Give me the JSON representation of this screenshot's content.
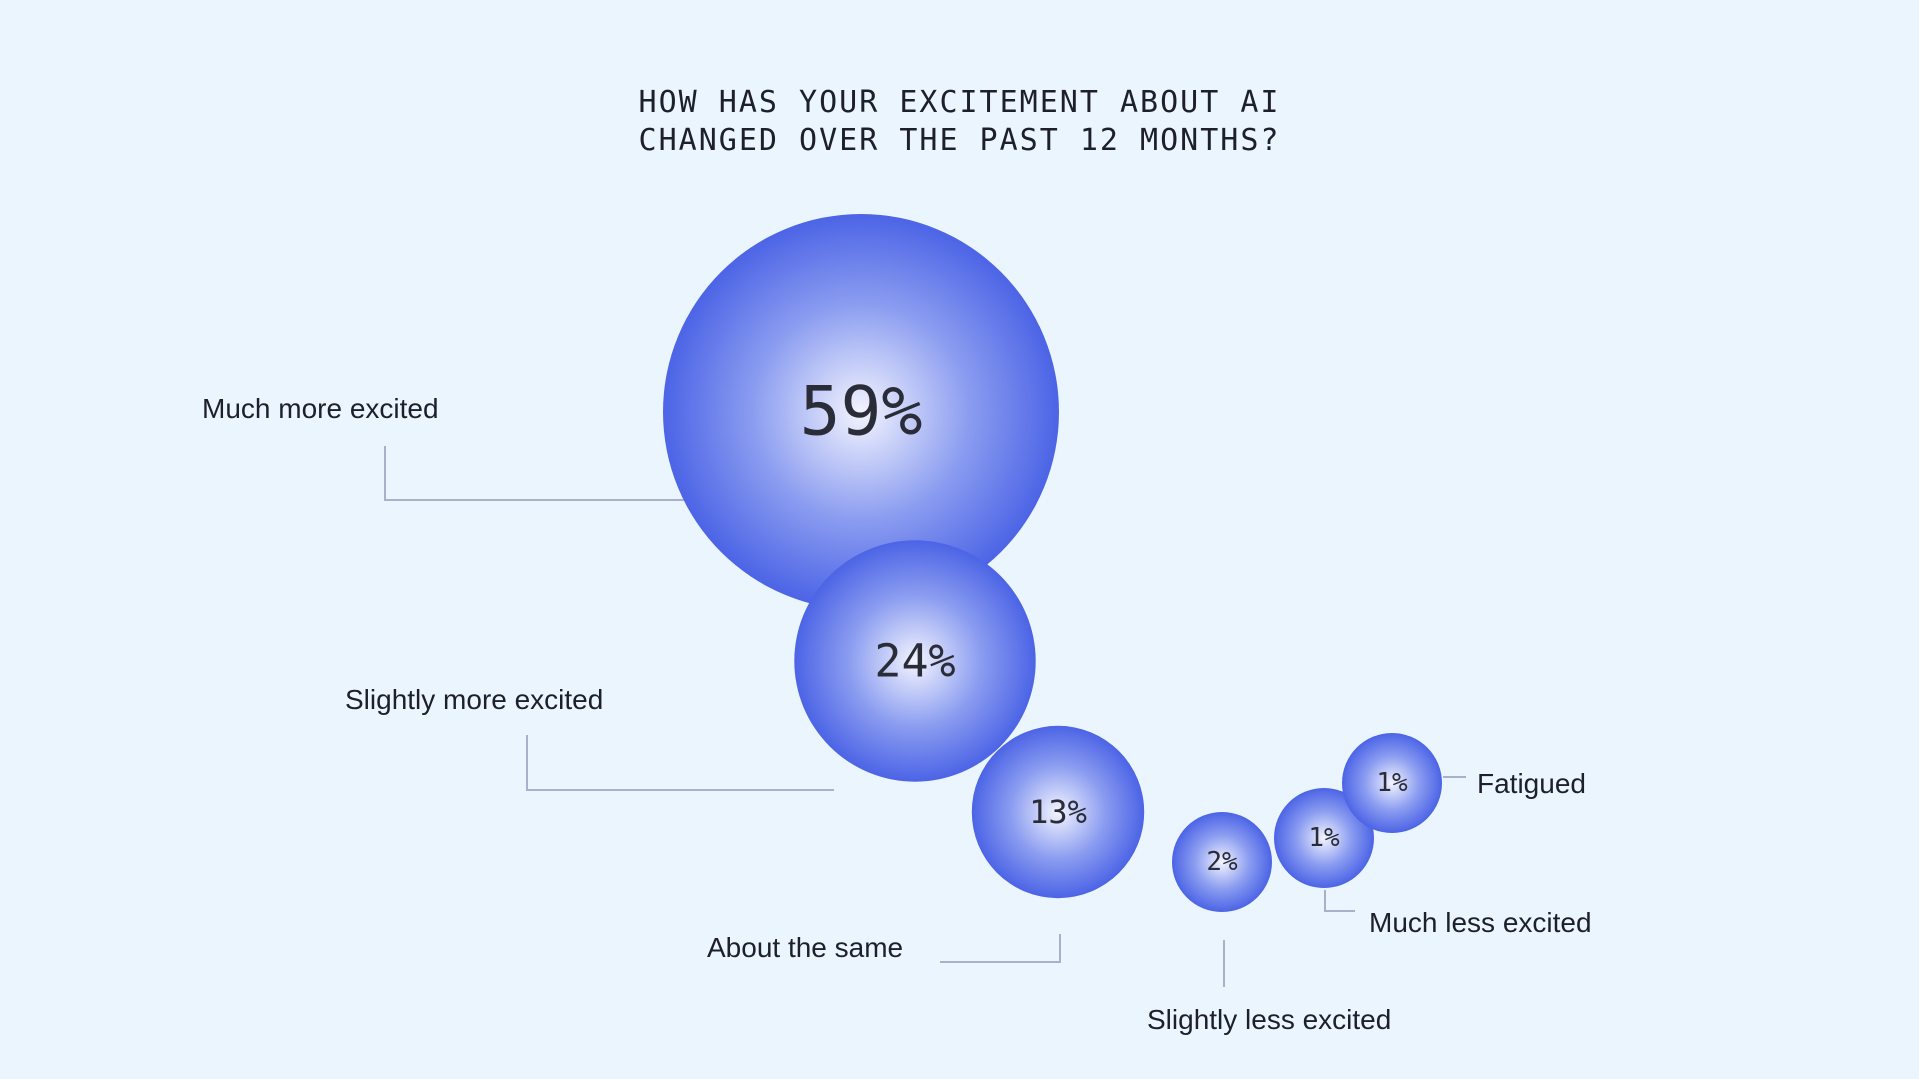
{
  "chart_data": {
    "type": "bubble",
    "title_lines": [
      "HOW HAS YOUR EXCITEMENT ABOUT AI",
      "CHANGED OVER THE PAST 12 MONTHS?"
    ],
    "unit": "%",
    "categories": [
      "Much more excited",
      "Slightly more excited",
      "About the same",
      "Slightly less excited",
      "Much less excited",
      "Fatigued"
    ],
    "values": [
      59,
      24,
      13,
      2,
      1,
      1
    ],
    "value_labels": [
      "59%",
      "24%",
      "13%",
      "2%",
      "1%",
      "1%"
    ],
    "legend": "none",
    "grid": false
  },
  "colors": {
    "background": "#ebf5fe",
    "bubble_center": "#f3f4fe",
    "bubble_mid": "#8a9cf0",
    "bubble_edge": "#4c64e6",
    "leader_line": "#aab0cc",
    "text": "#1d1f2b"
  }
}
